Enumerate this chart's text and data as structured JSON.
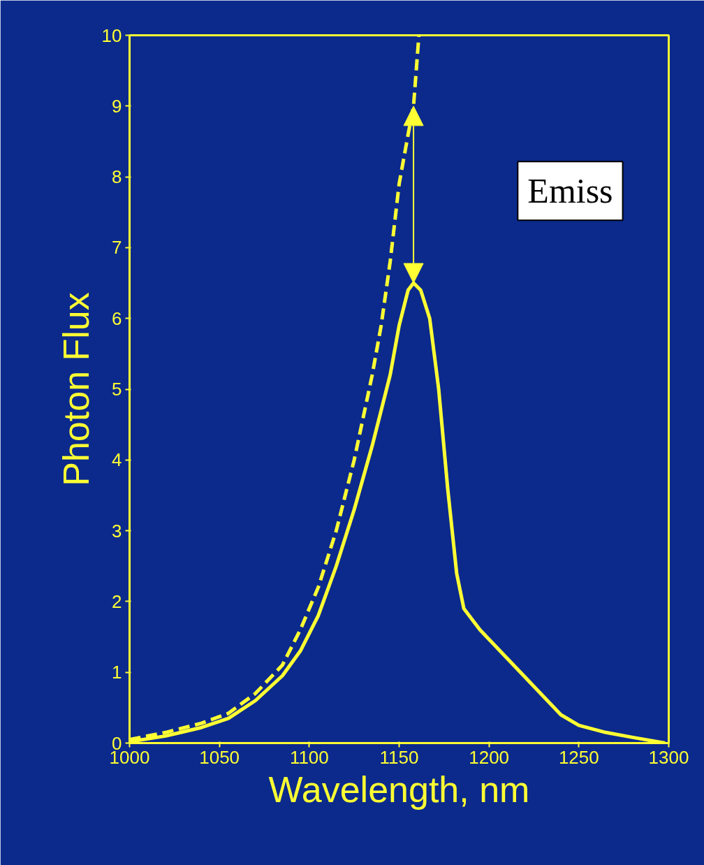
{
  "chart_data": {
    "type": "line",
    "xlabel": "Wavelength, nm",
    "ylabel": "Photon Flux",
    "xlim": [
      1000,
      1300
    ],
    "ylim": [
      0,
      10
    ],
    "xticks": [
      1000,
      1050,
      1100,
      1150,
      1200,
      1250,
      1300
    ],
    "yticks": [
      0,
      1,
      2,
      3,
      4,
      5,
      6,
      7,
      8,
      9,
      10
    ],
    "grid": false,
    "marker": "none",
    "annotations": [
      "Emiss"
    ],
    "series": [
      {
        "color": "#ffff33",
        "line_style": "solid",
        "x": [
          1000,
          1020,
          1040,
          1055,
          1070,
          1085,
          1095,
          1105,
          1115,
          1125,
          1135,
          1145,
          1150,
          1155,
          1158,
          1162,
          1167,
          1172,
          1177,
          1182,
          1186,
          1195,
          1210,
          1225,
          1240,
          1250,
          1265,
          1280,
          1298
        ],
        "values": [
          0.02,
          0.1,
          0.22,
          0.35,
          0.6,
          0.95,
          1.3,
          1.8,
          2.5,
          3.3,
          4.2,
          5.2,
          5.9,
          6.4,
          6.5,
          6.4,
          6.0,
          5.0,
          3.6,
          2.4,
          1.9,
          1.6,
          1.2,
          0.8,
          0.4,
          0.25,
          0.15,
          0.08,
          0.0
        ]
      },
      {
        "color": "#ffff33",
        "line_style": "dashed",
        "x": [
          1000,
          1020,
          1040,
          1055,
          1070,
          1085,
          1095,
          1105,
          1115,
          1125,
          1135,
          1140,
          1145,
          1150,
          1155,
          1158,
          1161
        ],
        "values": [
          0.05,
          0.15,
          0.28,
          0.42,
          0.7,
          1.1,
          1.6,
          2.2,
          3.0,
          4.0,
          5.2,
          5.9,
          6.8,
          7.9,
          8.6,
          9.0,
          10.0
        ]
      }
    ]
  }
}
